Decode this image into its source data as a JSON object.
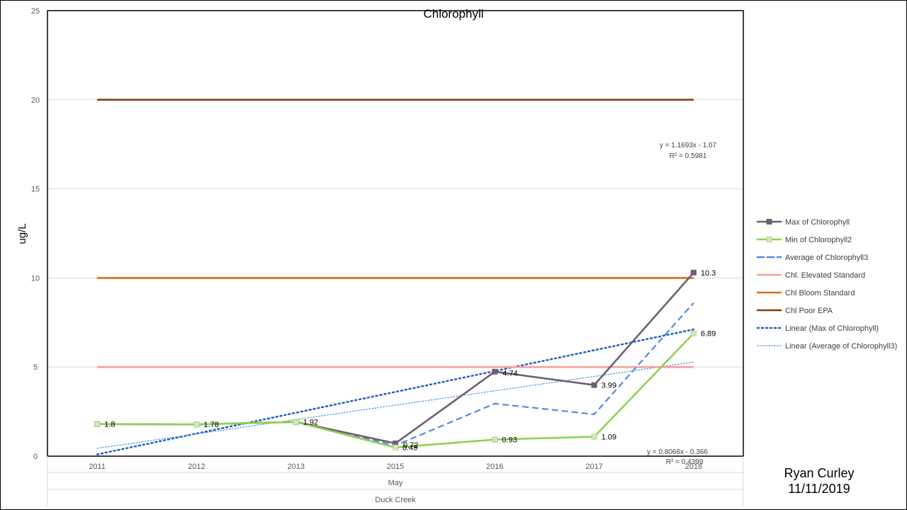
{
  "chart_data": {
    "type": "line",
    "title": "Chlorophyll",
    "ylabel": "ug/L",
    "ylim": [
      0,
      25
    ],
    "yticks": [
      "0",
      "5",
      "10",
      "15",
      "20",
      "25"
    ],
    "categories": [
      "2011",
      "2012",
      "2013",
      "2015",
      "2016",
      "2017",
      "2018"
    ],
    "category_group": "May",
    "category_group2": "Duck Creek",
    "grid": true,
    "legend_position": "right",
    "series": [
      {
        "name": "Max of Chlorophyll",
        "color": "#6F5F73",
        "style": "solid",
        "marker": "square",
        "values": [
          1.8,
          1.78,
          1.92,
          0.72,
          4.74,
          3.99,
          10.3
        ],
        "labels": [
          "",
          "",
          "",
          "",
          "",
          "3.99",
          "10.3"
        ]
      },
      {
        "name": "Min of Chlorophyll2",
        "color": "#92D050",
        "style": "solid",
        "marker": "square-light",
        "values": [
          1.8,
          1.78,
          1.92,
          0.49,
          0.93,
          1.09,
          6.89
        ],
        "labels": [
          "1.8",
          "1.78",
          "1.92",
          "0.49",
          "0.93",
          "1.09",
          "6.89"
        ]
      },
      {
        "name": "Average of Chlorophyll3",
        "color": "#4A8DDC",
        "style": "dash",
        "marker": "none",
        "values": [
          1.8,
          1.78,
          1.92,
          0.6,
          2.95,
          2.35,
          8.6
        ],
        "labels": []
      },
      {
        "name": "Chl. Elevated Standard",
        "color": "#F4A09C",
        "style": "solid",
        "marker": "none",
        "values": [
          5,
          5,
          5,
          5,
          5,
          5,
          5
        ],
        "labels": []
      },
      {
        "name": "Chl Bloom Standard",
        "color": "#E46C0A",
        "style": "solid",
        "marker": "none",
        "values": [
          10,
          10,
          10,
          10,
          10,
          10,
          10
        ],
        "labels": []
      },
      {
        "name": "Chl Poor EPA",
        "color": "#843C0C",
        "style": "solid",
        "marker": "none",
        "values": [
          20,
          20,
          20,
          20,
          20,
          20,
          20
        ],
        "labels": []
      }
    ],
    "overlap_labels": [
      {
        "text": "0.72",
        "series": 0,
        "index": 3
      },
      {
        "text": "4.74",
        "series": 0,
        "index": 4
      }
    ],
    "trendlines": [
      {
        "name": "Linear (Max of Chlorophyll)",
        "color": "#1F5FBF",
        "style": "dotted-bold",
        "slope": 1.1693,
        "intercept": -1.07,
        "equation": "y = 1.1693x - 1.07",
        "r2": "R² = 0.5981"
      },
      {
        "name": "Linear (Average of Chlorophyll3)",
        "color": "#4A8DDC",
        "style": "dotted-fine",
        "slope": 0.8066,
        "intercept": -0.366,
        "equation": "y = 0.8066x - 0.366",
        "r2": "R² = 0.4399"
      }
    ]
  },
  "footer": {
    "author": "Ryan Curley",
    "date": "11/11/2019"
  }
}
